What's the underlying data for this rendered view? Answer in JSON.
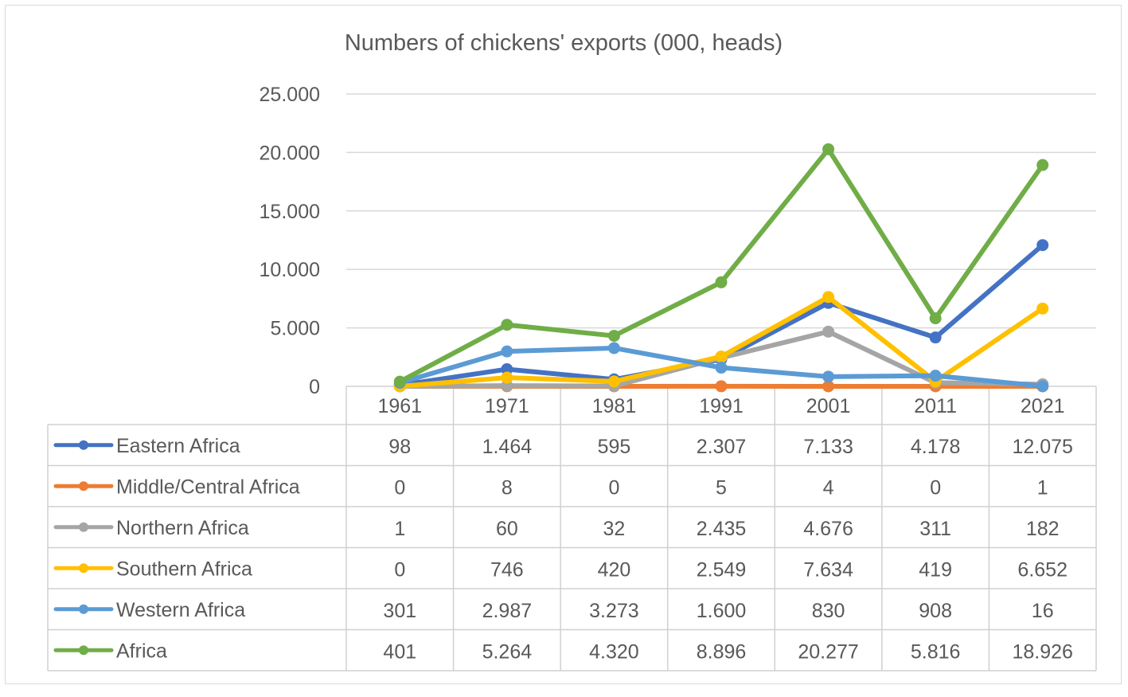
{
  "chart_data": {
    "type": "line",
    "title": "Numbers  of chickens' exports (000, heads)",
    "xlabel": "",
    "ylabel": "",
    "categories": [
      "1961",
      "1971",
      "1981",
      "1991",
      "2001",
      "2011",
      "2021"
    ],
    "ylim": [
      0,
      25000
    ],
    "yticks": [
      0,
      5000,
      10000,
      15000,
      20000,
      25000
    ],
    "ytick_labels": [
      "0",
      "5.000",
      "10.000",
      "15.000",
      "20.000",
      "25.000"
    ],
    "grid": true,
    "legend": "data-table-left",
    "series": [
      {
        "name": "Eastern Africa",
        "color": "#4472c4",
        "values": [
          98,
          1464,
          595,
          2307,
          7133,
          4178,
          12075
        ],
        "labels": [
          "98",
          "1.464",
          "595",
          "2.307",
          "7.133",
          "4.178",
          "12.075"
        ]
      },
      {
        "name": "Middle/Central Africa",
        "color": "#ed7d31",
        "values": [
          0,
          8,
          0,
          5,
          4,
          0,
          1
        ],
        "labels": [
          "0",
          "8",
          "0",
          "5",
          "4",
          "0",
          "1"
        ]
      },
      {
        "name": "Northern Africa",
        "color": "#a5a5a5",
        "values": [
          1,
          60,
          32,
          2435,
          4676,
          311,
          182
        ],
        "labels": [
          "1",
          "60",
          "32",
          "2.435",
          "4.676",
          "311",
          "182"
        ]
      },
      {
        "name": "Southern Africa",
        "color": "#ffc000",
        "values": [
          0,
          746,
          420,
          2549,
          7634,
          419,
          6652
        ],
        "labels": [
          "0",
          "746",
          "420",
          "2.549",
          "7.634",
          "419",
          "6.652"
        ]
      },
      {
        "name": "Western Africa",
        "color": "#5b9bd5",
        "values": [
          301,
          2987,
          3273,
          1600,
          830,
          908,
          16
        ],
        "labels": [
          "301",
          "2.987",
          "3.273",
          "1.600",
          "830",
          "908",
          "16"
        ]
      },
      {
        "name": "Africa",
        "color": "#70ad47",
        "values": [
          401,
          5264,
          4320,
          8896,
          20277,
          5816,
          18926
        ],
        "labels": [
          "401",
          "5.264",
          "4.320",
          "8.896",
          "20.277",
          "5.816",
          "18.926"
        ]
      }
    ]
  }
}
